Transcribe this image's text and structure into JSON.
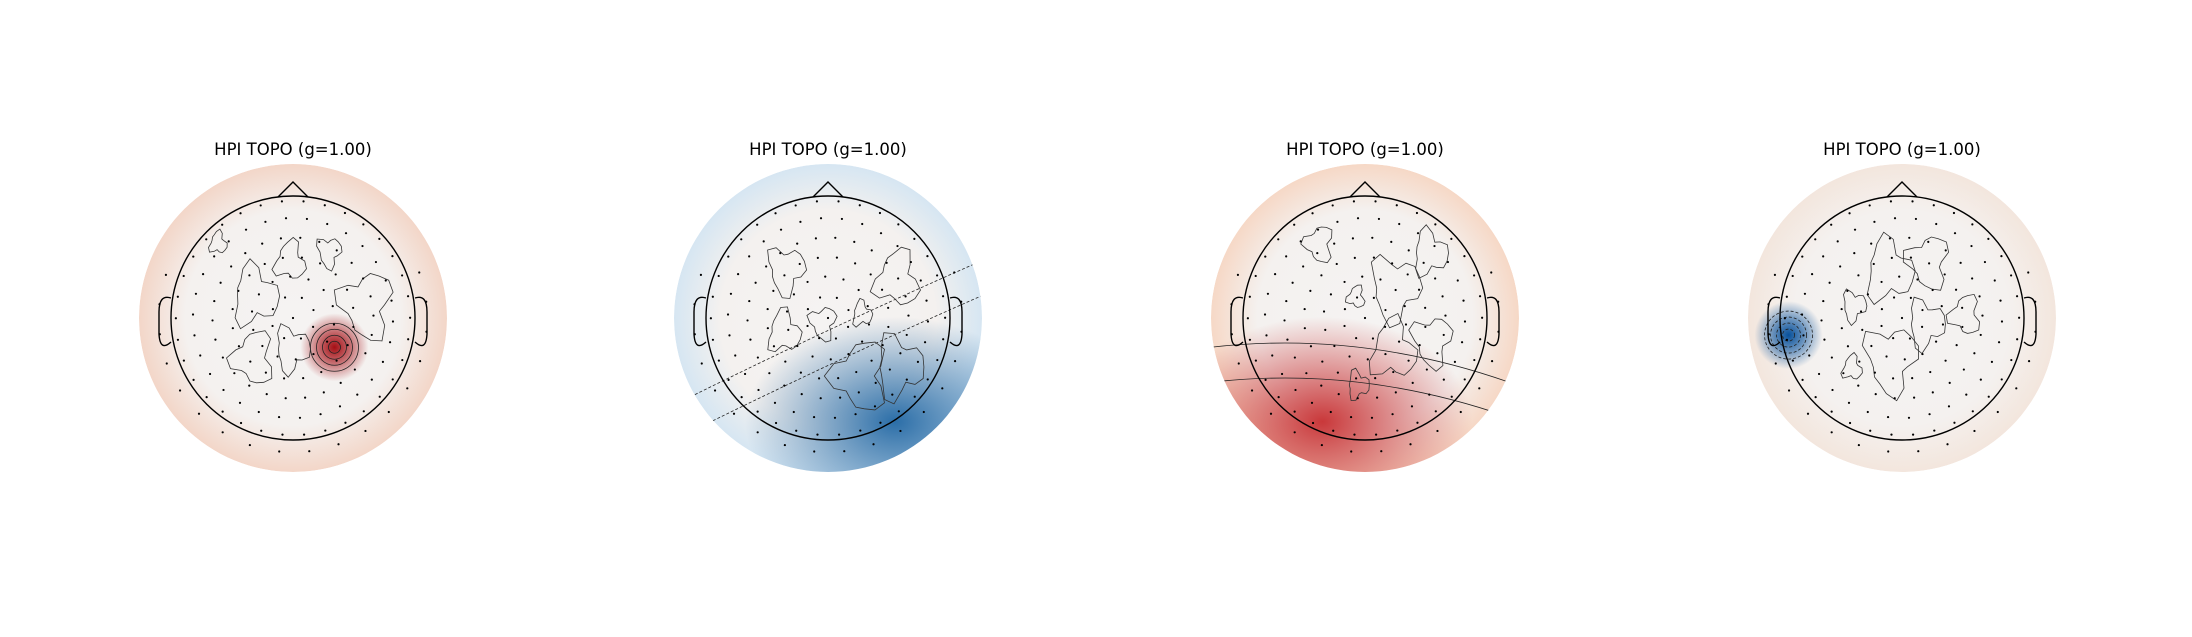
{
  "chart_data": [
    {
      "type": "heatmap",
      "title": "HPI TOPO (g=1.00)",
      "background_tint": "#f3d6c8",
      "blobs": [
        {
          "x": 0.34,
          "y": -0.24,
          "amplitude": 1.0,
          "color": "#a50f15"
        }
      ]
    },
    {
      "type": "heatmap",
      "title": "HPI TOPO (g=1.00)",
      "background_tint": "#d6e6f2",
      "blobs": [
        {
          "x": 0.55,
          "y": -0.85,
          "amplitude": -0.55,
          "color": "#2b6ea8"
        }
      ]
    },
    {
      "type": "heatmap",
      "title": "HPI TOPO (g=1.00)",
      "background_tint": "#f6d8c6",
      "blobs": [
        {
          "x": -0.35,
          "y": -0.85,
          "amplitude": 0.65,
          "color": "#c9383a"
        }
      ]
    },
    {
      "type": "heatmap",
      "title": "HPI TOPO (g=1.00)",
      "background_tint": "#f3e6dd",
      "blobs": [
        {
          "x": -0.93,
          "y": -0.14,
          "amplitude": -1.0,
          "color": "#08519c"
        }
      ]
    }
  ],
  "colors": {
    "outline": "#000000",
    "sensor": "#000000",
    "contour": "#333333"
  }
}
